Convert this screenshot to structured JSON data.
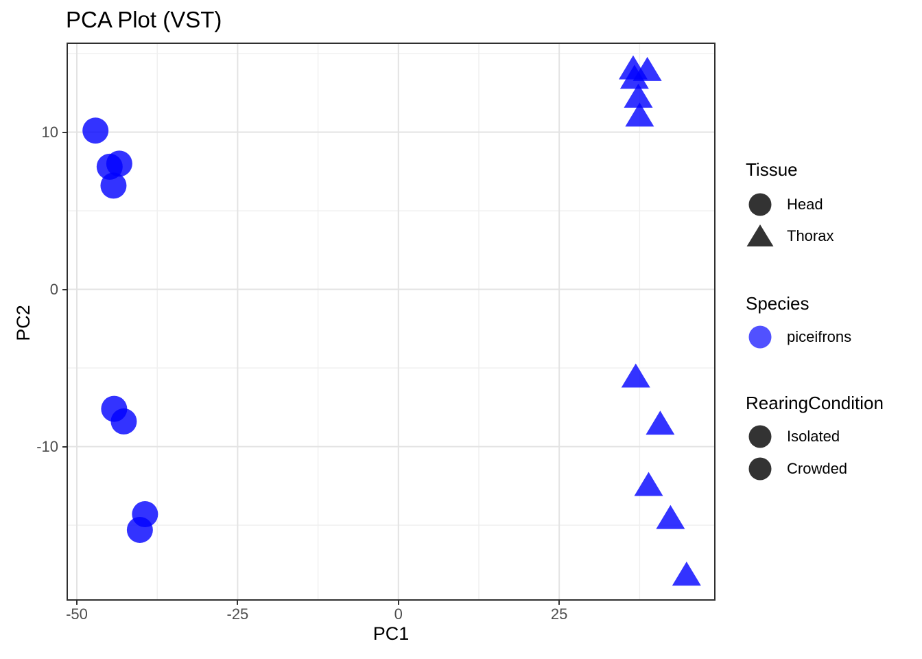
{
  "title": "PCA Plot (VST)",
  "chart_data": {
    "type": "scatter",
    "title": "PCA Plot (VST)",
    "xlabel": "PC1",
    "ylabel": "PC2",
    "xlim": [
      -51.6,
      49.3
    ],
    "ylim": [
      -19.8,
      15.7
    ],
    "x_ticks": [
      -50,
      -25,
      0,
      25
    ],
    "y_ticks": [
      10,
      0,
      -10
    ],
    "x_minor_ticks": [
      -37.5,
      -12.5,
      12.5,
      37.5
    ],
    "y_minor_ticks": [
      15,
      5,
      -5,
      -15
    ],
    "grid": true,
    "legend_position": "right",
    "point_color": "#0000FF",
    "point_alpha": 0.8,
    "series": [
      {
        "name": "Head",
        "tissue": "Head",
        "species": "piceifrons",
        "shape": "circle",
        "points": [
          [
            -47.1,
            10.1
          ],
          [
            -44.9,
            7.8
          ],
          [
            -43.4,
            8.0
          ],
          [
            -44.3,
            6.6
          ],
          [
            -44.2,
            -7.6
          ],
          [
            -42.7,
            -8.4
          ],
          [
            -39.4,
            -14.3
          ],
          [
            -40.2,
            -15.3
          ]
        ]
      },
      {
        "name": "Thorax",
        "tissue": "Thorax",
        "species": "piceifrons",
        "shape": "triangle",
        "points": [
          [
            36.5,
            14.1
          ],
          [
            38.7,
            14.0
          ],
          [
            36.7,
            13.5
          ],
          [
            37.3,
            12.3
          ],
          [
            37.5,
            11.1
          ],
          [
            36.9,
            -5.5
          ],
          [
            40.7,
            -8.5
          ],
          [
            38.9,
            -12.4
          ],
          [
            42.3,
            -14.5
          ],
          [
            44.8,
            -18.1
          ]
        ]
      }
    ]
  },
  "legend": {
    "groups": [
      {
        "title": "Tissue",
        "items": [
          {
            "label": "Head",
            "shape": "circle",
            "color": "#333333"
          },
          {
            "label": "Thorax",
            "shape": "triangle",
            "color": "#333333"
          }
        ]
      },
      {
        "title": "Species",
        "items": [
          {
            "label": "piceifrons",
            "shape": "circle",
            "color": "#3333FF"
          }
        ]
      },
      {
        "title": "RearingCondition",
        "items": [
          {
            "label": "Isolated",
            "shape": "circle",
            "color": "#333333"
          },
          {
            "label": "Crowded",
            "shape": "circle",
            "color": "#333333"
          }
        ]
      }
    ]
  },
  "style": {
    "panel_border_color": "#2F2F2F",
    "grid_major_color": "#E3E3E3",
    "grid_minor_color": "#EFEFEF",
    "tick_color": "#333333",
    "tick_label_color": "#4D4D4D"
  }
}
